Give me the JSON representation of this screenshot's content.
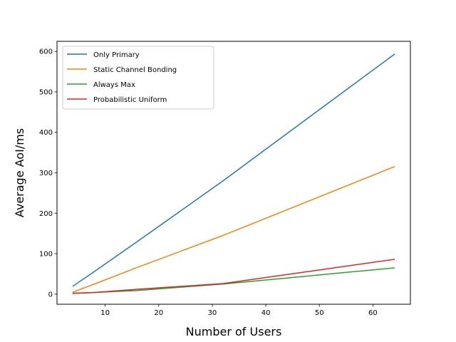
{
  "chart_data": {
    "type": "line",
    "xlabel": "Number of Users",
    "ylabel": "Average AoI/ms",
    "xlim": [
      1.0,
      67.0
    ],
    "ylim": [
      -25,
      625
    ],
    "xticks": [
      10,
      20,
      30,
      40,
      50,
      60
    ],
    "yticks": [
      0,
      100,
      200,
      300,
      400,
      500,
      600
    ],
    "legend_position": "top-left",
    "grid": false,
    "series": [
      {
        "name": "Only Primary",
        "color": "#1f77b4",
        "x": [
          4,
          8,
          16,
          32,
          64
        ],
        "y": [
          20,
          56,
          130,
          280,
          593
        ]
      },
      {
        "name": "Static Channel Bonding",
        "color": "#ff7f0e",
        "x": [
          4,
          8,
          16,
          32,
          64
        ],
        "y": [
          5,
          25,
          66,
          145,
          315
        ]
      },
      {
        "name": "Always Max",
        "color": "#2ca02c",
        "x": [
          4,
          8,
          16,
          32,
          64
        ],
        "y": [
          2,
          4,
          9,
          25,
          65
        ]
      },
      {
        "name": "Probabilistic Uniform",
        "color": "#d62728",
        "x": [
          4,
          8,
          16,
          32,
          64
        ],
        "y": [
          2,
          4,
          12,
          26,
          86
        ]
      }
    ]
  }
}
